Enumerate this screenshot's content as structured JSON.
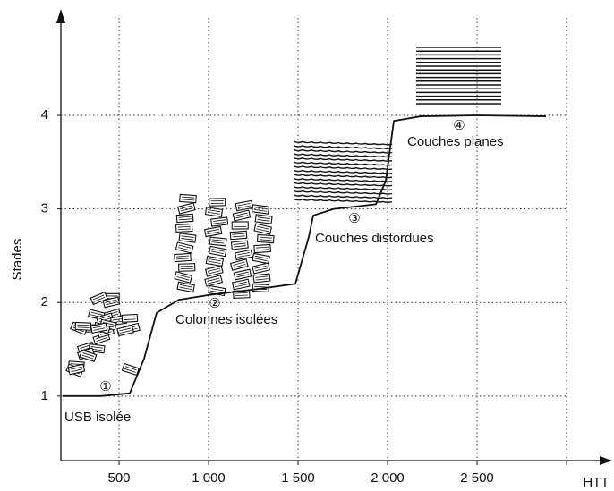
{
  "chart_data": {
    "type": "line",
    "y_label": "Stades",
    "x_label": "HTT",
    "x": [
      185,
      400,
      560,
      640,
      710,
      835,
      1000,
      1300,
      1485,
      1560,
      1585,
      1700,
      1935,
      1990,
      2035,
      2185,
      2500,
      2885
    ],
    "series": [
      {
        "name": null,
        "color": "#111111",
        "values": [
          1,
          1,
          1.03,
          1.4,
          1.89,
          2.03,
          2.08,
          2.15,
          2.2,
          2.7,
          2.93,
          3.0,
          3.05,
          3.3,
          3.94,
          3.99,
          4.0,
          3.99
        ]
      }
    ],
    "xlim": [
      175,
      3235
    ],
    "ylim": [
      0.31,
      5.09
    ],
    "xticks": [
      500,
      {
        "value": 1000,
        "label": "1 000"
      },
      {
        "value": 1500,
        "label": "1 500"
      },
      {
        "value": 2000,
        "label": "2 000"
      },
      {
        "value": 2500,
        "label": "2 500"
      },
      {
        "value": 3000,
        "label": null
      }
    ],
    "yticks": [
      1,
      2,
      3,
      4
    ],
    "grid": true,
    "annotations": [
      "①",
      "USB isolée",
      "②",
      "Colonnes isolées",
      "③",
      "Couches distordues",
      "④",
      "Couches planes"
    ]
  }
}
